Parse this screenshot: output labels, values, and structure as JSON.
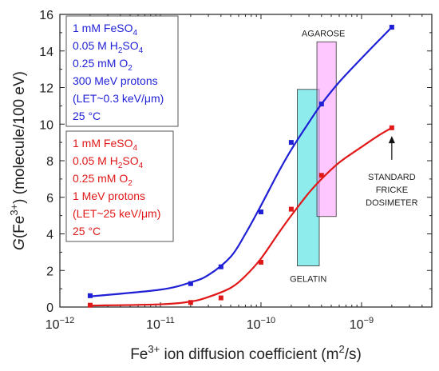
{
  "chart_data": {
    "type": "scatter",
    "xscale": "log",
    "xlim": [
      1e-12,
      5e-09
    ],
    "ylim": [
      0,
      16
    ],
    "yticks": [
      0,
      2,
      4,
      6,
      8,
      10,
      12,
      14,
      16
    ],
    "xticks": [
      1e-12,
      1e-11,
      1e-10,
      1e-09
    ],
    "xtick_labels": [
      {
        "base": "10",
        "exp": "−12"
      },
      {
        "base": "10",
        "exp": "−11"
      },
      {
        "base": "10",
        "exp": "−10"
      },
      {
        "base": "10",
        "exp": "−9"
      }
    ],
    "xlabel": {
      "main": "Fe",
      "sup1": "3+",
      "mid": " ion diffusion coefficient (m",
      "sup2": "2",
      "end": "/s)"
    },
    "ylabel": {
      "prefix": "G",
      "mid": "(Fe",
      "sup": "3+",
      "end": ") (molecule/100 eV)"
    },
    "series": [
      {
        "color": "#1f1fd6",
        "x": [
          2e-12,
          2e-11,
          4e-11,
          1e-10,
          2e-10,
          4e-10,
          2e-09
        ],
        "y": [
          0.62,
          1.28,
          2.2,
          5.2,
          9.0,
          11.1,
          15.3
        ],
        "fit": [
          [
            2e-12,
            0.58
          ],
          [
            1e-11,
            0.95
          ],
          [
            2e-11,
            1.35
          ],
          [
            3e-11,
            1.75
          ],
          [
            5e-11,
            2.75
          ],
          [
            7e-11,
            4.0
          ],
          [
            1e-10,
            5.55
          ],
          [
            1.5e-10,
            7.4
          ],
          [
            2e-10,
            8.6
          ],
          [
            3e-10,
            10.1
          ],
          [
            4e-10,
            11.1
          ],
          [
            6e-10,
            12.3
          ],
          [
            1e-09,
            13.6
          ],
          [
            1.5e-09,
            14.6
          ],
          [
            2e-09,
            15.3
          ]
        ]
      },
      {
        "color": "#e01818",
        "x": [
          2e-12,
          2e-11,
          4e-11,
          1e-10,
          2e-10,
          4e-10,
          2e-09
        ],
        "y": [
          0.1,
          0.25,
          0.5,
          2.45,
          5.35,
          7.2,
          9.8
        ],
        "fit": [
          [
            2e-12,
            0.08
          ],
          [
            1e-11,
            0.15
          ],
          [
            2e-11,
            0.3
          ],
          [
            3e-11,
            0.55
          ],
          [
            5e-11,
            1.05
          ],
          [
            7e-11,
            1.7
          ],
          [
            1e-10,
            2.65
          ],
          [
            1.5e-10,
            4.05
          ],
          [
            2e-10,
            5.0
          ],
          [
            3e-10,
            6.25
          ],
          [
            4e-10,
            7.0
          ],
          [
            6e-10,
            7.9
          ],
          [
            1e-09,
            8.75
          ],
          [
            1.5e-09,
            9.4
          ],
          [
            2e-09,
            9.8
          ]
        ]
      }
    ],
    "regions": [
      {
        "label": "GELATIN",
        "color": "#33dddd",
        "x": [
          2.3e-10,
          3.8e-10
        ],
        "y": [
          2.25,
          11.9
        ]
      },
      {
        "label": "AGAROSE",
        "color": "#ff99ff",
        "x": [
          3.6e-10,
          5.6e-10
        ],
        "y": [
          4.95,
          14.5
        ]
      }
    ],
    "annotation": {
      "lines": [
        "STANDARD",
        "FRICKE",
        "DOSIMETER"
      ],
      "arrow_x": 2e-09,
      "arrow_from_y": 8.05,
      "arrow_to_y": 9.35
    },
    "legends": [
      {
        "color": "#1f1fd6",
        "lines": [
          [
            "1 mM FeSO",
            {
              "sub": "4"
            }
          ],
          [
            "0.05 M H",
            {
              "sub": "2"
            },
            "SO",
            {
              "sub": "4"
            }
          ],
          [
            "0.25 mM O",
            {
              "sub": "2"
            }
          ],
          [
            "300 MeV protons"
          ],
          [
            "(LET~0.3 keV/μm)"
          ],
          [
            "25 °C"
          ]
        ]
      },
      {
        "color": "#e01818",
        "lines": [
          [
            "1 mM FeSO",
            {
              "sub": "4"
            }
          ],
          [
            "0.05 M H",
            {
              "sub": "2"
            },
            "SO",
            {
              "sub": "4"
            }
          ],
          [
            "0.25 mM O",
            {
              "sub": "2"
            }
          ],
          [
            "1 MeV protons"
          ],
          [
            "(LET~25 keV/μm)"
          ],
          [
            "25 °C"
          ]
        ]
      }
    ]
  }
}
